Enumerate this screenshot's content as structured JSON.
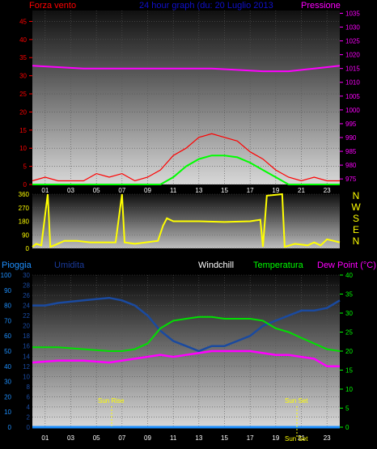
{
  "header": {
    "left_label": "Forza vento",
    "title": "24 hour graph (du: 20 Luglio 2013",
    "right_label": "Pressione"
  },
  "compass": [
    "N",
    "W",
    "S",
    "E",
    "N"
  ],
  "bottom_header": {
    "rain": "Pioggia",
    "humidity": "Umidita",
    "windchill": "Windchill",
    "temperature": "Temperatura",
    "dewpoint": "Dew Point (°C)"
  },
  "annotations": {
    "sunrise": "Sun Rise",
    "sunset": "Sun Set"
  },
  "colors": {
    "wind": "#ff0000",
    "gust_base": "#00ff00",
    "pressure": "#ff00ff",
    "direction": "#ffff00",
    "humidity": "#1a4aa0",
    "temperature": "#00e000",
    "dewpoint": "#ff00ff",
    "rain": "#1e90ff",
    "title": "#1010cc"
  },
  "chart_data": [
    {
      "type": "line",
      "name": "wind-pressure",
      "x_ticks": [
        "01",
        "03",
        "05",
        "07",
        "09",
        "11",
        "13",
        "15",
        "17",
        "19",
        "21",
        "23"
      ],
      "y_left_ticks": [
        "0",
        "5",
        "10",
        "15",
        "20",
        "25",
        "30",
        "35",
        "40",
        "45"
      ],
      "y_left_range": [
        0,
        48
      ],
      "y_right_ticks": [
        "975",
        "980",
        "985",
        "990",
        "995",
        "1000",
        "1005",
        "1010",
        "1015",
        "1020",
        "1025",
        "1030",
        "1035"
      ],
      "y_right_range": [
        973,
        1036
      ],
      "x_range": [
        0,
        24
      ],
      "wind_speed": [
        [
          0,
          1
        ],
        [
          1,
          2
        ],
        [
          2,
          1
        ],
        [
          3,
          1
        ],
        [
          4,
          1
        ],
        [
          5,
          3
        ],
        [
          6,
          2
        ],
        [
          7,
          3
        ],
        [
          8,
          1
        ],
        [
          9,
          2
        ],
        [
          10,
          4
        ],
        [
          11,
          8
        ],
        [
          12,
          10
        ],
        [
          13,
          13
        ],
        [
          14,
          14
        ],
        [
          15,
          13
        ],
        [
          16,
          12
        ],
        [
          17,
          9
        ],
        [
          18,
          7
        ],
        [
          19,
          4
        ],
        [
          20,
          2
        ],
        [
          21,
          1
        ],
        [
          22,
          2
        ],
        [
          23,
          1
        ],
        [
          24,
          1
        ]
      ],
      "wind_average": [
        [
          0,
          0
        ],
        [
          10,
          0
        ],
        [
          11,
          2
        ],
        [
          12,
          5
        ],
        [
          13,
          7
        ],
        [
          14,
          8
        ],
        [
          15,
          8
        ],
        [
          16,
          7.5
        ],
        [
          17,
          6
        ],
        [
          18,
          4
        ],
        [
          19,
          2
        ],
        [
          20,
          0
        ],
        [
          24,
          0
        ]
      ],
      "pressure": [
        [
          0,
          1016
        ],
        [
          2,
          1015.5
        ],
        [
          4,
          1015
        ],
        [
          6,
          1015
        ],
        [
          8,
          1015
        ],
        [
          10,
          1015
        ],
        [
          12,
          1015
        ],
        [
          14,
          1015
        ],
        [
          16,
          1014.5
        ],
        [
          18,
          1014
        ],
        [
          19,
          1014
        ],
        [
          20,
          1014
        ],
        [
          22,
          1015
        ],
        [
          23,
          1015.5
        ],
        [
          24,
          1016
        ]
      ]
    },
    {
      "type": "line",
      "name": "wind-direction",
      "x_range": [
        0,
        24
      ],
      "y_ticks": [
        "0",
        "90",
        "180",
        "270",
        "360"
      ],
      "y_range": [
        0,
        360
      ],
      "direction": [
        [
          0,
          10
        ],
        [
          0.3,
          30
        ],
        [
          0.7,
          20
        ],
        [
          1.2,
          360
        ],
        [
          1.4,
          10
        ],
        [
          1.7,
          20
        ],
        [
          2.5,
          50
        ],
        [
          3.5,
          50
        ],
        [
          4.5,
          40
        ],
        [
          6.5,
          40
        ],
        [
          7,
          360
        ],
        [
          7.2,
          40
        ],
        [
          8,
          30
        ],
        [
          9.8,
          50
        ],
        [
          10.2,
          150
        ],
        [
          10.5,
          200
        ],
        [
          11,
          180
        ],
        [
          13,
          180
        ],
        [
          15,
          175
        ],
        [
          17,
          180
        ],
        [
          17.8,
          190
        ],
        [
          18,
          10
        ],
        [
          18.3,
          350
        ],
        [
          19.5,
          360
        ],
        [
          19.7,
          10
        ],
        [
          20.5,
          30
        ],
        [
          21.5,
          20
        ],
        [
          22,
          40
        ],
        [
          22.5,
          20
        ],
        [
          23,
          60
        ],
        [
          23.5,
          50
        ],
        [
          24,
          40
        ]
      ]
    },
    {
      "type": "line",
      "name": "temp-humidity",
      "x_range": [
        0,
        24
      ],
      "x_ticks": [
        "01",
        "03",
        "05",
        "07",
        "09",
        "11",
        "13",
        "15",
        "17",
        "19",
        "21",
        "23"
      ],
      "y_rain_ticks": [
        "0",
        "10",
        "20",
        "30",
        "40",
        "50",
        "60",
        "70",
        "80",
        "90",
        "100"
      ],
      "y_hum_ticks": [
        "0",
        "2",
        "4",
        "6",
        "8",
        "10",
        "12",
        "14",
        "16",
        "18",
        "20",
        "22",
        "24",
        "26",
        "28",
        "30"
      ],
      "y_temp_ticks": [
        "0",
        "5",
        "10",
        "15",
        "20",
        "25",
        "30",
        "35",
        "40"
      ],
      "y_temp_range": [
        0,
        40
      ],
      "temperature": [
        [
          0,
          21
        ],
        [
          2,
          21
        ],
        [
          4,
          20.5
        ],
        [
          6,
          20
        ],
        [
          7,
          20
        ],
        [
          8,
          20.5
        ],
        [
          9,
          22
        ],
        [
          10,
          26
        ],
        [
          11,
          28
        ],
        [
          12,
          28.5
        ],
        [
          13,
          29
        ],
        [
          14,
          29
        ],
        [
          15,
          28.5
        ],
        [
          16,
          28.5
        ],
        [
          17,
          28.5
        ],
        [
          18,
          28
        ],
        [
          19,
          26
        ],
        [
          20,
          25
        ],
        [
          21,
          23.5
        ],
        [
          22,
          22
        ],
        [
          23,
          20.5
        ],
        [
          24,
          20
        ]
      ],
      "dewpoint": [
        [
          0,
          17
        ],
        [
          2,
          17.5
        ],
        [
          4,
          17.5
        ],
        [
          6,
          17
        ],
        [
          8,
          18
        ],
        [
          10,
          19
        ],
        [
          11,
          18.5
        ],
        [
          12,
          19
        ],
        [
          13,
          19.5
        ],
        [
          14,
          20
        ],
        [
          15,
          20
        ],
        [
          16,
          20
        ],
        [
          17,
          20
        ],
        [
          18,
          19.5
        ],
        [
          19,
          19
        ],
        [
          20,
          19
        ],
        [
          21,
          18.5
        ],
        [
          22,
          18
        ],
        [
          23,
          16
        ],
        [
          24,
          16
        ]
      ],
      "humidity": [
        [
          0,
          24
        ],
        [
          1,
          24
        ],
        [
          2,
          24.5
        ],
        [
          4,
          25
        ],
        [
          6,
          25.5
        ],
        [
          7,
          25
        ],
        [
          8,
          24
        ],
        [
          9,
          22
        ],
        [
          10,
          19
        ],
        [
          11,
          17
        ],
        [
          12,
          16
        ],
        [
          13,
          15
        ],
        [
          14,
          16
        ],
        [
          15,
          16
        ],
        [
          16,
          17
        ],
        [
          17,
          18
        ],
        [
          18,
          20
        ],
        [
          19,
          21
        ],
        [
          20,
          22
        ],
        [
          21,
          23
        ],
        [
          22,
          23
        ],
        [
          23,
          23.5
        ],
        [
          24,
          25
        ]
      ],
      "rain": [
        [
          0,
          0
        ],
        [
          24,
          0
        ]
      ]
    }
  ]
}
